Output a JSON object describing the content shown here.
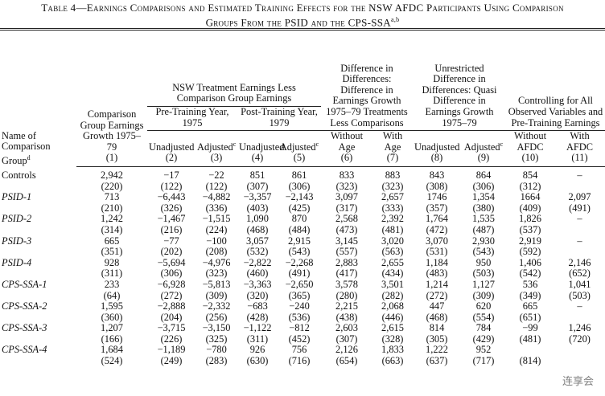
{
  "title": {
    "text": "Table 4—Earnings Comparisons and Estimated Training Effects for the NSW AFDC Participants Using Comparison Groups From the PSID and the CPS-SSA",
    "sup": "a,b"
  },
  "header": {
    "name_col": {
      "label": "Name of Comparison Group",
      "sup": "d"
    },
    "groups": [
      {
        "label": "NSW Treatment Earnings Less Comparison Group Earnings",
        "subgroups": [
          "Pre-Training Year, 1975",
          "Post-Training Year, 1979"
        ]
      },
      {
        "label": "Difference in Differences: Difference in Earnings Growth 1975–79 Treatments Less Comparisons"
      },
      {
        "label": "Unrestricted Difference in Differences: Quasi Difference in Earnings Growth 1975–79"
      },
      {
        "label": "Controlling for All Observed Variables and Pre-Training Earnings"
      }
    ],
    "columns": [
      {
        "label": "Comparison Group Earnings Growth 1975–79",
        "number": "(1)"
      },
      {
        "label": "Unadjusted",
        "number": "(2)"
      },
      {
        "label": "Adjusted",
        "sup": "c",
        "number": "(3)"
      },
      {
        "label": "Unadjusted",
        "number": "(4)"
      },
      {
        "label": "Adjusted",
        "sup": "c",
        "number": "(5)"
      },
      {
        "label": "Without Age",
        "number": "(6)"
      },
      {
        "label": "With Age",
        "number": "(7)"
      },
      {
        "label": "Unadjusted",
        "number": "(8)"
      },
      {
        "label": "Adjusted",
        "sup": "c",
        "number": "(9)"
      },
      {
        "label": "Without AFDC",
        "number": "(10)"
      },
      {
        "label": "With AFDC",
        "number": "(11)"
      }
    ]
  },
  "table": {
    "rows": [
      {
        "name": "Controls",
        "values": [
          "2,942",
          "−17",
          "−22",
          "851",
          "861",
          "833",
          "883",
          "843",
          "864",
          "854",
          "–"
        ],
        "ses": [
          "(220)",
          "(122)",
          "(122)",
          "(307)",
          "(306)",
          "(323)",
          "(323)",
          "(308)",
          "(306)",
          "(312)",
          null
        ]
      },
      {
        "name": "PSID-1",
        "values": [
          "713",
          "−6,443",
          "−4,882",
          "−3,357",
          "−2,143",
          "3,097",
          "2,657",
          "1746",
          "1,354",
          "1664",
          "2,097"
        ],
        "ses": [
          "(210)",
          "(326)",
          "(336)",
          "(403)",
          "(425)",
          "(317)",
          "(333)",
          "(357)",
          "(380)",
          "(409)",
          "(491)"
        ]
      },
      {
        "name": "PSID-2",
        "values": [
          "1,242",
          "−1,467",
          "−1,515",
          "1,090",
          "870",
          "2,568",
          "2,392",
          "1,764",
          "1,535",
          "1,826",
          "–"
        ],
        "ses": [
          "(314)",
          "(216)",
          "(224)",
          "(468)",
          "(484)",
          "(473)",
          "(481)",
          "(472)",
          "(487)",
          "(537)",
          null
        ]
      },
      {
        "name": "PSID-3",
        "values": [
          "665",
          "−77",
          "−100",
          "3,057",
          "2,915",
          "3,145",
          "3,020",
          "3,070",
          "2,930",
          "2,919",
          "–"
        ],
        "ses": [
          "(351)",
          "(202)",
          "(208)",
          "(532)",
          "(543)",
          "(557)",
          "(563)",
          "(531)",
          "(543)",
          "(592)",
          null
        ]
      },
      {
        "name": "PSID-4",
        "values": [
          "928",
          "−5,694",
          "−4,976",
          "−2,822",
          "−2,268",
          "2,883",
          "2,655",
          "1,184",
          "950",
          "1,406",
          "2,146"
        ],
        "ses": [
          "(311)",
          "(306)",
          "(323)",
          "(460)",
          "(491)",
          "(417)",
          "(434)",
          "(483)",
          "(503)",
          "(542)",
          "(652)"
        ]
      },
      {
        "name": "CPS-SSA-1",
        "values": [
          "233",
          "−6,928",
          "−5,813",
          "−3,363",
          "−2,650",
          "3,578",
          "3,501",
          "1,214",
          "1,127",
          "536",
          "1,041"
        ],
        "ses": [
          "(64)",
          "(272)",
          "(309)",
          "(320)",
          "(365)",
          "(280)",
          "(282)",
          "(272)",
          "(309)",
          "(349)",
          "(503)"
        ]
      },
      {
        "name": "CPS-SSA-2",
        "values": [
          "1,595",
          "−2,888",
          "−2,332",
          "−683",
          "−240",
          "2,215",
          "2,068",
          "447",
          "620",
          "665",
          "–"
        ],
        "ses": [
          "(360)",
          "(204)",
          "(256)",
          "(428)",
          "(536)",
          "(438)",
          "(446)",
          "(468)",
          "(554)",
          "(651)",
          null
        ]
      },
      {
        "name": "CPS-SSA-3",
        "values": [
          "1,207",
          "−3,715",
          "−3,150",
          "−1,122",
          "−812",
          "2,603",
          "2,615",
          "814",
          "784",
          "−99",
          "1,246"
        ],
        "ses": [
          "(166)",
          "(226)",
          "(325)",
          "(311)",
          "(452)",
          "(307)",
          "(328)",
          "(305)",
          "(429)",
          "(481)",
          "(720)"
        ]
      },
      {
        "name": "CPS-SSA-4",
        "values": [
          "1,684",
          "−1,189",
          "−780",
          "926",
          "756",
          "2,126",
          "1,833",
          "1,222",
          "952",
          null,
          null
        ],
        "ses": [
          "(524)",
          "(249)",
          "(283)",
          "(630)",
          "(716)",
          "(654)",
          "(663)",
          "(637)",
          "(717)",
          "(814)",
          null
        ]
      }
    ]
  },
  "watermark": "连享会"
}
